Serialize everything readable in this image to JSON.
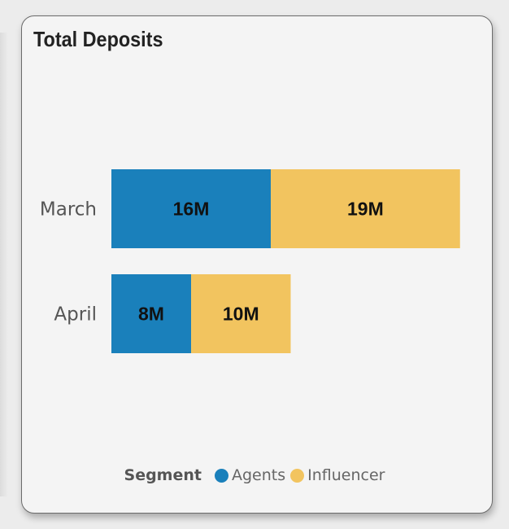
{
  "chart_data": {
    "type": "bar",
    "orientation": "horizontal",
    "stacked": true,
    "title": "Total Deposits",
    "categories": [
      "March",
      "April"
    ],
    "series": [
      {
        "name": "Agents",
        "values": [
          16,
          8
        ],
        "labels": [
          "16M",
          "8M"
        ],
        "color": "#1a80bb"
      },
      {
        "name": "Influencer",
        "values": [
          19,
          10
        ],
        "labels": [
          "19M",
          "10M"
        ],
        "color": "#f2c45f"
      }
    ],
    "unit": "M",
    "xlim": [
      0,
      40
    ],
    "legend": {
      "title": "Segment",
      "position": "bottom"
    },
    "grid": false
  }
}
